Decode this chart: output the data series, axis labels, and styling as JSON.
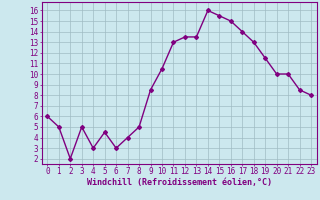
{
  "x": [
    0,
    1,
    2,
    3,
    4,
    5,
    6,
    7,
    8,
    9,
    10,
    11,
    12,
    13,
    14,
    15,
    16,
    17,
    18,
    19,
    20,
    21,
    22,
    23
  ],
  "y": [
    6.0,
    5.0,
    2.0,
    5.0,
    3.0,
    4.5,
    3.0,
    4.0,
    5.0,
    8.5,
    10.5,
    13.0,
    13.5,
    13.5,
    16.0,
    15.5,
    15.0,
    14.0,
    13.0,
    11.5,
    10.0,
    10.0,
    8.5,
    8.0
  ],
  "line_color": "#800080",
  "marker": "D",
  "marker_size": 2.0,
  "bg_color": "#cce8ee",
  "grid_color": "#a0bcc4",
  "xlabel": "Windchill (Refroidissement éolien,°C)",
  "ylabel_ticks": [
    2,
    3,
    4,
    5,
    6,
    7,
    8,
    9,
    10,
    11,
    12,
    13,
    14,
    15,
    16
  ],
  "ylim": [
    1.5,
    16.8
  ],
  "xlim": [
    -0.5,
    23.5
  ],
  "axis_color": "#800080",
  "tick_color": "#800080",
  "label_color": "#800080",
  "tick_fontsize": 5.5,
  "xlabel_fontsize": 6.0
}
